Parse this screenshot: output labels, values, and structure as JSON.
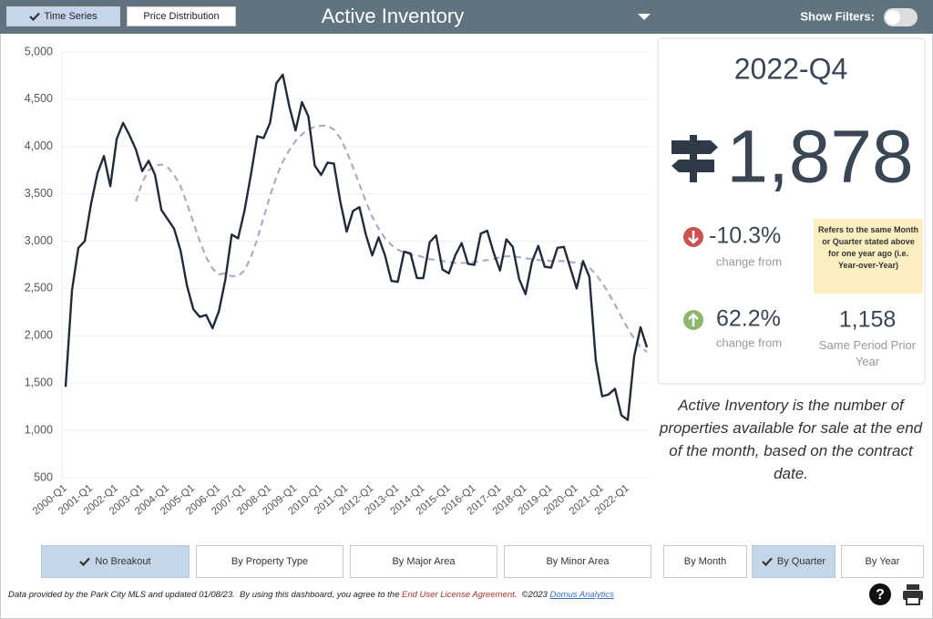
{
  "header": {
    "tabs": [
      {
        "label": "Time Series",
        "selected": true
      },
      {
        "label": "Price Distribution",
        "selected": false
      }
    ],
    "title": "Active Inventory",
    "filter_label": "Show Filters:"
  },
  "chart_data": {
    "type": "line",
    "categories": [
      "2000-Q1",
      null,
      null,
      null,
      "2001-Q1",
      null,
      null,
      null,
      "2002-Q1",
      null,
      null,
      null,
      "2003-Q1",
      null,
      null,
      null,
      "2004-Q1",
      null,
      null,
      null,
      "2005-Q1",
      null,
      null,
      null,
      "2006-Q1",
      null,
      null,
      null,
      "2007-Q1",
      null,
      null,
      null,
      "2008-Q1",
      null,
      null,
      null,
      "2009-Q1",
      null,
      null,
      null,
      "2010-Q1",
      null,
      null,
      null,
      "2011-Q1",
      null,
      null,
      null,
      "2012-Q1",
      null,
      null,
      null,
      "2013-Q1",
      null,
      null,
      null,
      "2014-Q1",
      null,
      null,
      null,
      "2015-Q1",
      null,
      null,
      null,
      "2016-Q1",
      null,
      null,
      null,
      "2017-Q1",
      null,
      null,
      null,
      "2018-Q1",
      null,
      null,
      null,
      "2019-Q1",
      null,
      null,
      null,
      "2020-Q1",
      null,
      null,
      null,
      "2021-Q1",
      null,
      null,
      null,
      "2022-Q1",
      null,
      null,
      null
    ],
    "series": [
      {
        "color": "#232b3b",
        "line_style": "solid",
        "values": [
          1460,
          2480,
          2930,
          3000,
          3400,
          3720,
          3900,
          3580,
          4080,
          4250,
          4120,
          3970,
          3740,
          3850,
          3700,
          3330,
          3230,
          3130,
          2900,
          2530,
          2280,
          2200,
          2220,
          2080,
          2260,
          2590,
          3070,
          3030,
          3320,
          3700,
          4110,
          4090,
          4250,
          4670,
          4760,
          4430,
          4170,
          4470,
          4320,
          3800,
          3700,
          3830,
          3820,
          3420,
          3100,
          3320,
          3360,
          3070,
          2850,
          3040,
          2850,
          2580,
          2570,
          2890,
          2870,
          2610,
          2610,
          2990,
          3060,
          2700,
          2660,
          2850,
          2980,
          2760,
          2750,
          3080,
          3110,
          2880,
          2690,
          3020,
          2940,
          2600,
          2440,
          2780,
          2950,
          2730,
          2720,
          2930,
          2940,
          2720,
          2500,
          2790,
          2620,
          1740,
          1360,
          1380,
          1440,
          1160,
          1110,
          1780,
          2090,
          1878
        ]
      },
      {
        "color": "#b4a7c7",
        "line_style": "dashed",
        "values": [
          null,
          null,
          null,
          null,
          null,
          null,
          null,
          null,
          null,
          null,
          null,
          3420,
          3620,
          3750,
          3800,
          3810,
          3780,
          3700,
          3580,
          3400,
          3200,
          3000,
          2830,
          2710,
          2650,
          2660,
          2630,
          2630,
          2690,
          2830,
          3020,
          3250,
          3480,
          3680,
          3840,
          3960,
          4060,
          4130,
          4180,
          4210,
          4220,
          4220,
          4180,
          4090,
          3950,
          3780,
          3600,
          3420,
          3260,
          3130,
          3030,
          2960,
          2910,
          2880,
          2860,
          2850,
          2830,
          2810,
          2800,
          2790,
          2780,
          2770,
          2770,
          2770,
          2780,
          2790,
          2800,
          2810,
          2830,
          2840,
          2840,
          2830,
          2820,
          2810,
          2800,
          2800,
          2790,
          2790,
          2790,
          2780,
          2770,
          2760,
          2720,
          2650,
          2560,
          2450,
          2330,
          2200,
          2080,
          1970,
          1880,
          1830
        ]
      }
    ],
    "ylim": [
      500,
      5000
    ],
    "yticks": [
      500,
      {
        "value": 1000,
        "label": "1,000"
      },
      {
        "value": 1500,
        "label": "1,500"
      },
      {
        "value": 2000,
        "label": "2,000"
      },
      {
        "value": 2500,
        "label": "2,500"
      },
      {
        "value": 3000,
        "label": "3,000"
      },
      {
        "value": 3500,
        "label": "3,500"
      },
      {
        "value": 4000,
        "label": "4,000"
      },
      {
        "value": 4500,
        "label": "4,500"
      },
      {
        "value": 5000,
        "label": "5,000"
      }
    ],
    "grid": true
  },
  "summary": {
    "period": "2022-Q4",
    "value": "1,878",
    "yoy_change": "-10.3%",
    "yoy_caption": "change from",
    "tooltip": "Refers to the same Month or Quarter stated above for one year ago (i.e. Year-over-Year)",
    "prior_change": "62.2%",
    "prior_caption": "change from",
    "prior_value": "1,158",
    "prior_label": "Same Period Prior Year"
  },
  "description": "Active Inventory is the number of properties available for sale at the end of the month, based on the contract date.",
  "breakout_buttons": [
    {
      "label": "No Breakout",
      "selected": true
    },
    {
      "label": "By Property Type",
      "selected": false
    },
    {
      "label": "By Major Area",
      "selected": false
    },
    {
      "label": "By Minor Area",
      "selected": false
    }
  ],
  "period_buttons": [
    {
      "label": "By Month",
      "selected": false
    },
    {
      "label": "By Quarter",
      "selected": true
    },
    {
      "label": "By Year",
      "selected": false
    }
  ],
  "footer": {
    "text": "Data provided by the Park City MLS and updated 01/08/23.  By using this dashboard, you agree to the",
    "license_link": "End User License Agreement",
    "copyright": ".  ©2023",
    "company_link": "Domus Analytics"
  }
}
